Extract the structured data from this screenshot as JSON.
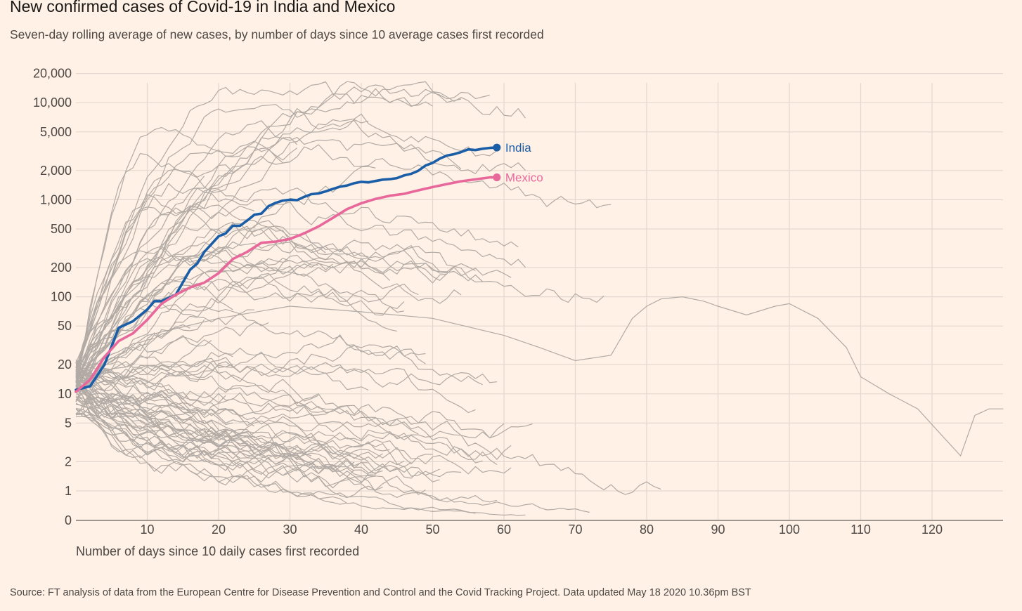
{
  "page": {
    "title": "New confirmed cases of Covid-19 in India and Mexico",
    "subtitle": "Seven-day rolling average of new cases, by number of days since 10 average cases first recorded",
    "source": "Source: FT analysis of data from the European Centre for Disease Prevention and Control and the Covid Tracking Project. Data updated May 18 2020 10.36pm BST"
  },
  "chart_data": {
    "type": "line",
    "xlabel": "Number of days since 10 daily cases first recorded",
    "ylabel": "",
    "xlim": [
      0,
      130
    ],
    "ylim": [
      0,
      30000
    ],
    "y_scale": "log",
    "grid": true,
    "x_ticks": [
      10,
      20,
      30,
      40,
      50,
      60,
      70,
      80,
      90,
      100,
      110,
      120
    ],
    "y_ticks": [
      0,
      1,
      2,
      5,
      10,
      20,
      50,
      100,
      200,
      500,
      1000,
      2000,
      5000,
      10000,
      20000
    ],
    "y_tick_labels": [
      "0",
      "1",
      "2",
      "5",
      "10",
      "20",
      "50",
      "100",
      "200",
      "500",
      "1,000",
      "2,000",
      "5,000",
      "10,000",
      "20,000"
    ],
    "colors": {
      "highlight_india": "#1a5ea8",
      "highlight_mexico": "#e8689b",
      "background_series": "#b2aaa5",
      "grid": "#e3d8cf"
    },
    "series": [
      {
        "name": "India",
        "highlight": true,
        "color": "#1a5ea8",
        "x": [
          0,
          2,
          4,
          6,
          8,
          10,
          11,
          12,
          14,
          16,
          17,
          18,
          20,
          21,
          22,
          23,
          24,
          25,
          26,
          27,
          28,
          29,
          30,
          31,
          32,
          33,
          34,
          35,
          36,
          37,
          38,
          39,
          40,
          41,
          42,
          43,
          44,
          45,
          46,
          47,
          48,
          49,
          50,
          51,
          52,
          53,
          54,
          55,
          56,
          57,
          58,
          59
        ],
        "values": [
          11,
          12,
          20,
          48,
          56,
          74,
          90,
          90,
          105,
          190,
          220,
          290,
          420,
          450,
          540,
          540,
          610,
          700,
          720,
          860,
          930,
          980,
          1000,
          990,
          1070,
          1140,
          1160,
          1220,
          1290,
          1360,
          1400,
          1480,
          1530,
          1510,
          1560,
          1610,
          1630,
          1670,
          1780,
          1850,
          1990,
          2250,
          2400,
          2650,
          2850,
          2950,
          3100,
          3300,
          3250,
          3350,
          3420,
          3450
        ]
      },
      {
        "name": "Mexico",
        "highlight": true,
        "color": "#e8689b",
        "x": [
          0,
          2,
          4,
          6,
          8,
          10,
          12,
          14,
          16,
          18,
          20,
          22,
          24,
          26,
          28,
          30,
          32,
          34,
          36,
          38,
          40,
          42,
          44,
          46,
          48,
          50,
          52,
          54,
          56,
          58,
          59
        ],
        "values": [
          10.5,
          14,
          24,
          35,
          42,
          58,
          85,
          105,
          125,
          140,
          175,
          245,
          290,
          360,
          370,
          395,
          450,
          530,
          650,
          800,
          920,
          1020,
          1100,
          1150,
          1250,
          1350,
          1450,
          1550,
          1620,
          1700,
          1700
        ]
      }
    ]
  }
}
